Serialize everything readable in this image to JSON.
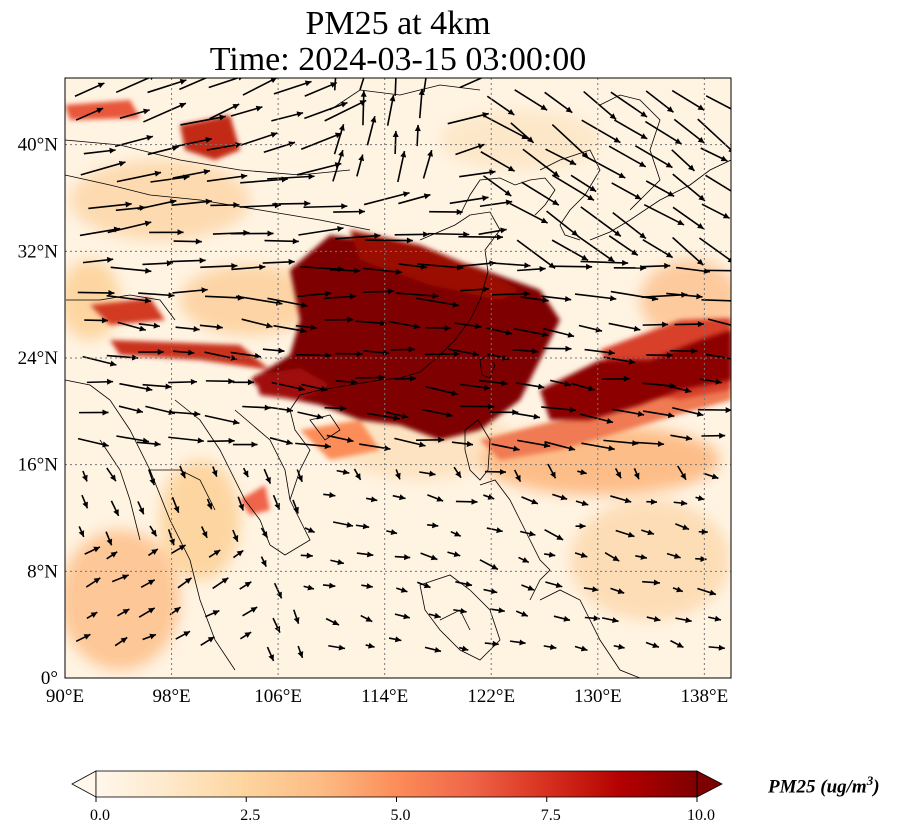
{
  "title": {
    "line1": "PM25 at 4km",
    "line2": "Time: 2024-03-15 03:00:00"
  },
  "map": {
    "lon_range": [
      90,
      140
    ],
    "lat_range": [
      0,
      45
    ],
    "lon_ticks": [
      "90°E",
      "98°E",
      "106°E",
      "114°E",
      "122°E",
      "130°E",
      "138°E"
    ],
    "lat_ticks": [
      "0°",
      "8°N",
      "16°N",
      "24°N",
      "32°N",
      "40°N"
    ],
    "gridlines": true,
    "colormap": "OrRd",
    "vectors": "wind arrows (black)"
  },
  "colorbar": {
    "label": "PM25 (ug/m",
    "label_sup": "3",
    "label_close": ")",
    "ticks": [
      "0.0",
      "2.5",
      "5.0",
      "7.5",
      "10.0"
    ],
    "range": [
      0,
      10
    ],
    "extend": "both",
    "colors": [
      "#fff7ec",
      "#fee8c8",
      "#fdd49e",
      "#fdbb84",
      "#fc8d59",
      "#ef6548",
      "#d7301f",
      "#b30000",
      "#7f0000"
    ]
  }
}
